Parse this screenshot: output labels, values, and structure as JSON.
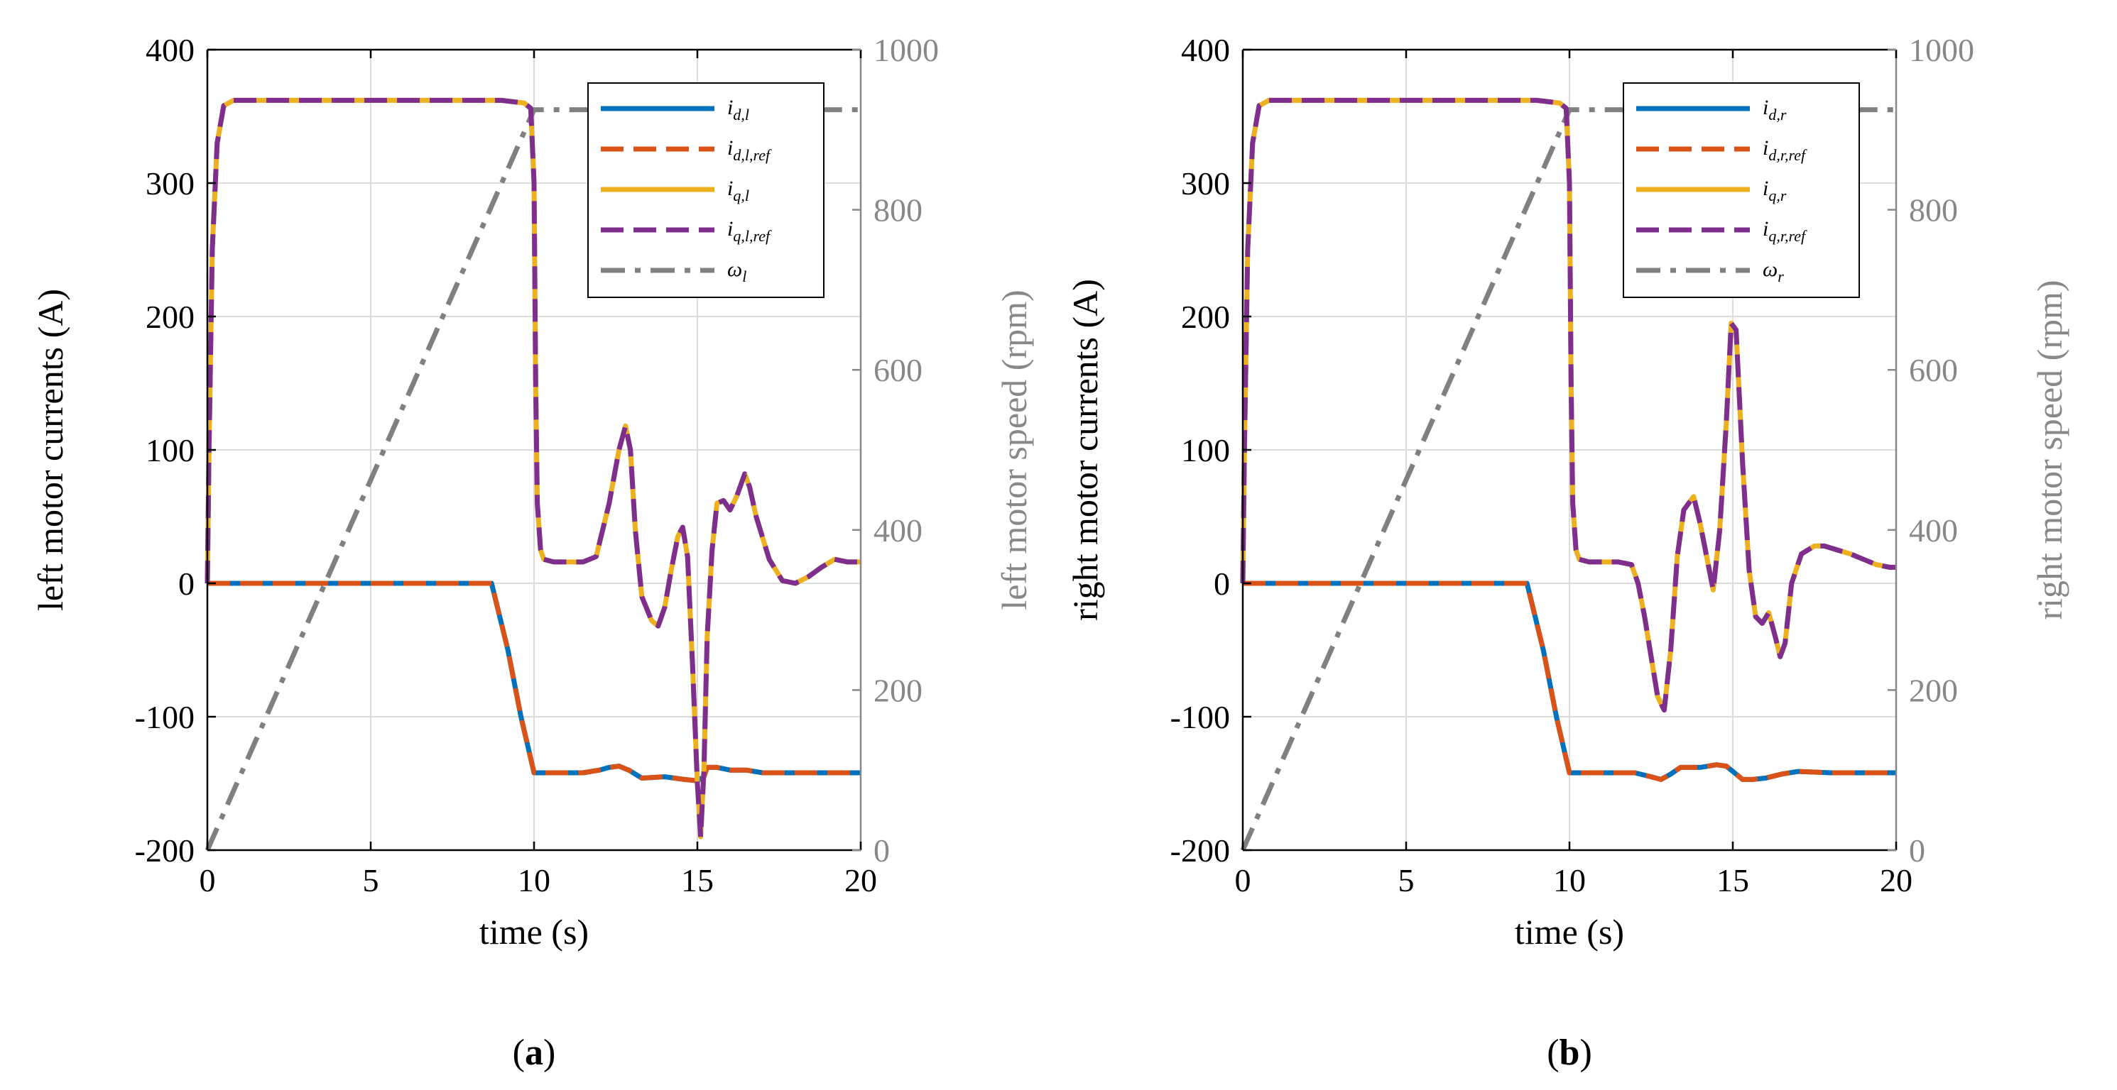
{
  "chart_data": [
    {
      "type": "line",
      "panel_label": "(a)",
      "panel_letter": "a",
      "xlabel": "time (s)",
      "ylabel_left": "left motor currents (A)",
      "ylabel_right": "left motor speed (rpm)",
      "xlim": [
        0,
        20
      ],
      "ylim_left": [
        -200,
        400
      ],
      "ylim_right": [
        0,
        1000
      ],
      "xticks": [
        "0",
        "5",
        "10",
        "15",
        "20"
      ],
      "yticks_left": [
        "400",
        "300",
        "200",
        "100",
        "0",
        "-100",
        "-200"
      ],
      "yticks_right": [
        "1000",
        "800",
        "600",
        "400",
        "200",
        "0"
      ],
      "grid": true,
      "legend_position": "top-right",
      "legend": [
        {
          "base": "i",
          "sub": "d,l"
        },
        {
          "base": "i",
          "sub": "d,l,ref"
        },
        {
          "base": "i",
          "sub": "q,l"
        },
        {
          "base": "i",
          "sub": "q,l,ref"
        },
        {
          "base": "ω",
          "sub": "l"
        }
      ],
      "series": [
        {
          "name": "i_d,l",
          "axis": "left",
          "color": "#0072BD",
          "style": "solid",
          "x": [
            0,
            8.7,
            9.2,
            9.6,
            10.0,
            11.5,
            12.0,
            12.3,
            12.6,
            12.9,
            13.3,
            14.0,
            14.6,
            15.0,
            15.2,
            15.3,
            15.6,
            16.0,
            16.5,
            17.0,
            17.5,
            18.5,
            20
          ],
          "y": [
            0,
            0,
            -50,
            -100,
            -142,
            -142,
            -140,
            -138,
            -137,
            -140,
            -146,
            -145,
            -147,
            -148,
            -145,
            -138,
            -138,
            -140,
            -140,
            -142,
            -142,
            -142,
            -142
          ]
        },
        {
          "name": "i_d,l,ref",
          "axis": "left",
          "color": "#D95319",
          "style": "dashed",
          "x": [
            0,
            8.7,
            9.2,
            9.6,
            10.0,
            11.5,
            12.0,
            12.3,
            12.6,
            12.9,
            13.3,
            14.0,
            14.6,
            15.0,
            15.2,
            15.3,
            15.6,
            16.0,
            16.5,
            17.0,
            17.5,
            18.5,
            20
          ],
          "y": [
            0,
            0,
            -50,
            -100,
            -142,
            -142,
            -140,
            -138,
            -137,
            -140,
            -146,
            -145,
            -147,
            -148,
            -145,
            -138,
            -138,
            -140,
            -140,
            -142,
            -142,
            -142,
            -142
          ]
        },
        {
          "name": "i_q,l",
          "axis": "left",
          "color": "#EDB120",
          "style": "solid",
          "x": [
            0,
            0.05,
            0.15,
            0.3,
            0.5,
            0.8,
            1.5,
            5,
            9,
            9.7,
            9.9,
            10.0,
            10.05,
            10.1,
            10.2,
            10.3,
            10.6,
            11.0,
            11.5,
            11.9,
            12.3,
            12.6,
            12.8,
            12.95,
            13.1,
            13.3,
            13.6,
            13.8,
            14.0,
            14.2,
            14.4,
            14.55,
            14.7,
            14.85,
            15.0,
            15.1,
            15.2,
            15.3,
            15.45,
            15.6,
            15.8,
            16.0,
            16.2,
            16.45,
            16.6,
            16.8,
            17.2,
            17.6,
            18.0,
            18.4,
            18.8,
            19.2,
            19.6,
            20
          ],
          "y": [
            0,
            100,
            250,
            330,
            358,
            362,
            362,
            362,
            362,
            360,
            356,
            300,
            150,
            60,
            25,
            18,
            16,
            16,
            16,
            20,
            60,
            100,
            118,
            100,
            40,
            -10,
            -28,
            -32,
            -18,
            10,
            35,
            42,
            20,
            -60,
            -150,
            -190,
            -140,
            -40,
            25,
            60,
            62,
            55,
            65,
            82,
            72,
            50,
            18,
            2,
            0,
            5,
            12,
            18,
            16,
            16
          ]
        },
        {
          "name": "i_q,l,ref",
          "axis": "left",
          "color": "#7E2F8E",
          "style": "dashed",
          "x": [
            0,
            0.05,
            0.15,
            0.3,
            0.5,
            0.8,
            1.5,
            5,
            9,
            9.7,
            9.9,
            10.0,
            10.05,
            10.1,
            10.2,
            10.3,
            10.6,
            11.0,
            11.5,
            11.9,
            12.3,
            12.6,
            12.8,
            12.95,
            13.1,
            13.3,
            13.6,
            13.8,
            14.0,
            14.2,
            14.4,
            14.55,
            14.7,
            14.85,
            15.0,
            15.1,
            15.2,
            15.3,
            15.45,
            15.6,
            15.8,
            16.0,
            16.2,
            16.45,
            16.6,
            16.8,
            17.2,
            17.6,
            18.0,
            18.4,
            18.8,
            19.2,
            19.6,
            20
          ],
          "y": [
            0,
            100,
            250,
            330,
            358,
            362,
            362,
            362,
            362,
            360,
            356,
            300,
            150,
            60,
            25,
            18,
            16,
            16,
            16,
            20,
            60,
            100,
            118,
            100,
            40,
            -10,
            -28,
            -32,
            -18,
            10,
            35,
            42,
            20,
            -60,
            -150,
            -190,
            -140,
            -40,
            25,
            60,
            62,
            55,
            65,
            82,
            72,
            50,
            18,
            2,
            0,
            5,
            12,
            18,
            16,
            16
          ]
        },
        {
          "name": "ω_l",
          "axis": "right",
          "color": "#808080",
          "style": "dashdot",
          "x": [
            0,
            10.0,
            20
          ],
          "y": [
            0,
            925,
            925
          ]
        }
      ]
    },
    {
      "type": "line",
      "panel_label": "(b)",
      "panel_letter": "b",
      "xlabel": "time (s)",
      "ylabel_left": "right motor currents (A)",
      "ylabel_right": "right motor speed (rpm)",
      "xlim": [
        0,
        20
      ],
      "ylim_left": [
        -200,
        400
      ],
      "ylim_right": [
        0,
        1000
      ],
      "xticks": [
        "0",
        "5",
        "10",
        "15",
        "20"
      ],
      "yticks_left": [
        "400",
        "300",
        "200",
        "100",
        "0",
        "-100",
        "-200"
      ],
      "yticks_right": [
        "1000",
        "800",
        "600",
        "400",
        "200",
        "0"
      ],
      "grid": true,
      "legend_position": "top-right",
      "legend": [
        {
          "base": "i",
          "sub": "d,r"
        },
        {
          "base": "i",
          "sub": "d,r,ref"
        },
        {
          "base": "i",
          "sub": "q,r"
        },
        {
          "base": "i",
          "sub": "q,r,ref"
        },
        {
          "base": "ω",
          "sub": "r"
        }
      ],
      "series": [
        {
          "name": "i_d,r",
          "axis": "left",
          "color": "#0072BD",
          "style": "solid",
          "x": [
            0,
            8.7,
            9.2,
            9.6,
            10.0,
            12.0,
            12.5,
            12.8,
            13.1,
            13.4,
            14.0,
            14.5,
            14.8,
            15.1,
            15.3,
            15.6,
            16.0,
            16.5,
            17.0,
            18.0,
            20
          ],
          "y": [
            0,
            0,
            -50,
            -100,
            -142,
            -142,
            -145,
            -147,
            -143,
            -138,
            -138,
            -136,
            -137,
            -143,
            -147,
            -147,
            -146,
            -143,
            -141,
            -142,
            -142
          ]
        },
        {
          "name": "i_d,r,ref",
          "axis": "left",
          "color": "#D95319",
          "style": "dashed",
          "x": [
            0,
            8.7,
            9.2,
            9.6,
            10.0,
            12.0,
            12.5,
            12.8,
            13.1,
            13.4,
            14.0,
            14.5,
            14.8,
            15.1,
            15.3,
            15.6,
            16.0,
            16.5,
            17.0,
            18.0,
            20
          ],
          "y": [
            0,
            0,
            -50,
            -100,
            -142,
            -142,
            -145,
            -147,
            -143,
            -138,
            -138,
            -136,
            -137,
            -143,
            -147,
            -147,
            -146,
            -143,
            -141,
            -142,
            -142
          ]
        },
        {
          "name": "i_q,r",
          "axis": "left",
          "color": "#EDB120",
          "style": "solid",
          "x": [
            0,
            0.05,
            0.15,
            0.3,
            0.5,
            0.8,
            1.5,
            5,
            9,
            9.7,
            9.9,
            10.0,
            10.05,
            10.1,
            10.2,
            10.3,
            10.6,
            11.0,
            11.5,
            11.9,
            12.1,
            12.3,
            12.5,
            12.7,
            12.9,
            13.1,
            13.3,
            13.5,
            13.8,
            14.0,
            14.2,
            14.4,
            14.6,
            14.8,
            14.95,
            15.1,
            15.3,
            15.5,
            15.7,
            15.9,
            16.1,
            16.3,
            16.45,
            16.6,
            16.8,
            17.1,
            17.5,
            17.8,
            18.2,
            18.6,
            19.0,
            19.4,
            19.8,
            20
          ],
          "y": [
            0,
            100,
            250,
            330,
            358,
            362,
            362,
            362,
            362,
            360,
            356,
            300,
            150,
            60,
            25,
            18,
            16,
            16,
            16,
            14,
            0,
            -25,
            -55,
            -85,
            -95,
            -50,
            20,
            55,
            65,
            45,
            20,
            -5,
            40,
            120,
            195,
            190,
            90,
            10,
            -25,
            -30,
            -22,
            -40,
            -55,
            -45,
            0,
            22,
            28,
            28,
            25,
            22,
            18,
            14,
            12,
            12
          ]
        },
        {
          "name": "i_q,r,ref",
          "axis": "left",
          "color": "#7E2F8E",
          "style": "dashed",
          "x": [
            0,
            0.05,
            0.15,
            0.3,
            0.5,
            0.8,
            1.5,
            5,
            9,
            9.7,
            9.9,
            10.0,
            10.05,
            10.1,
            10.2,
            10.3,
            10.6,
            11.0,
            11.5,
            11.9,
            12.1,
            12.3,
            12.5,
            12.7,
            12.9,
            13.1,
            13.3,
            13.5,
            13.8,
            14.0,
            14.2,
            14.4,
            14.6,
            14.8,
            14.95,
            15.1,
            15.3,
            15.5,
            15.7,
            15.9,
            16.1,
            16.3,
            16.45,
            16.6,
            16.8,
            17.1,
            17.5,
            17.8,
            18.2,
            18.6,
            19.0,
            19.4,
            19.8,
            20
          ],
          "y": [
            0,
            100,
            250,
            330,
            358,
            362,
            362,
            362,
            362,
            360,
            356,
            300,
            150,
            60,
            25,
            18,
            16,
            16,
            16,
            14,
            0,
            -25,
            -55,
            -85,
            -95,
            -50,
            20,
            55,
            65,
            45,
            20,
            -5,
            40,
            120,
            195,
            190,
            90,
            10,
            -25,
            -30,
            -22,
            -40,
            -55,
            -45,
            0,
            22,
            28,
            28,
            25,
            22,
            18,
            14,
            12,
            12
          ]
        },
        {
          "name": "ω_r",
          "axis": "right",
          "color": "#808080",
          "style": "dashdot",
          "x": [
            0,
            10.0,
            20
          ],
          "y": [
            0,
            925,
            925
          ]
        }
      ]
    }
  ]
}
